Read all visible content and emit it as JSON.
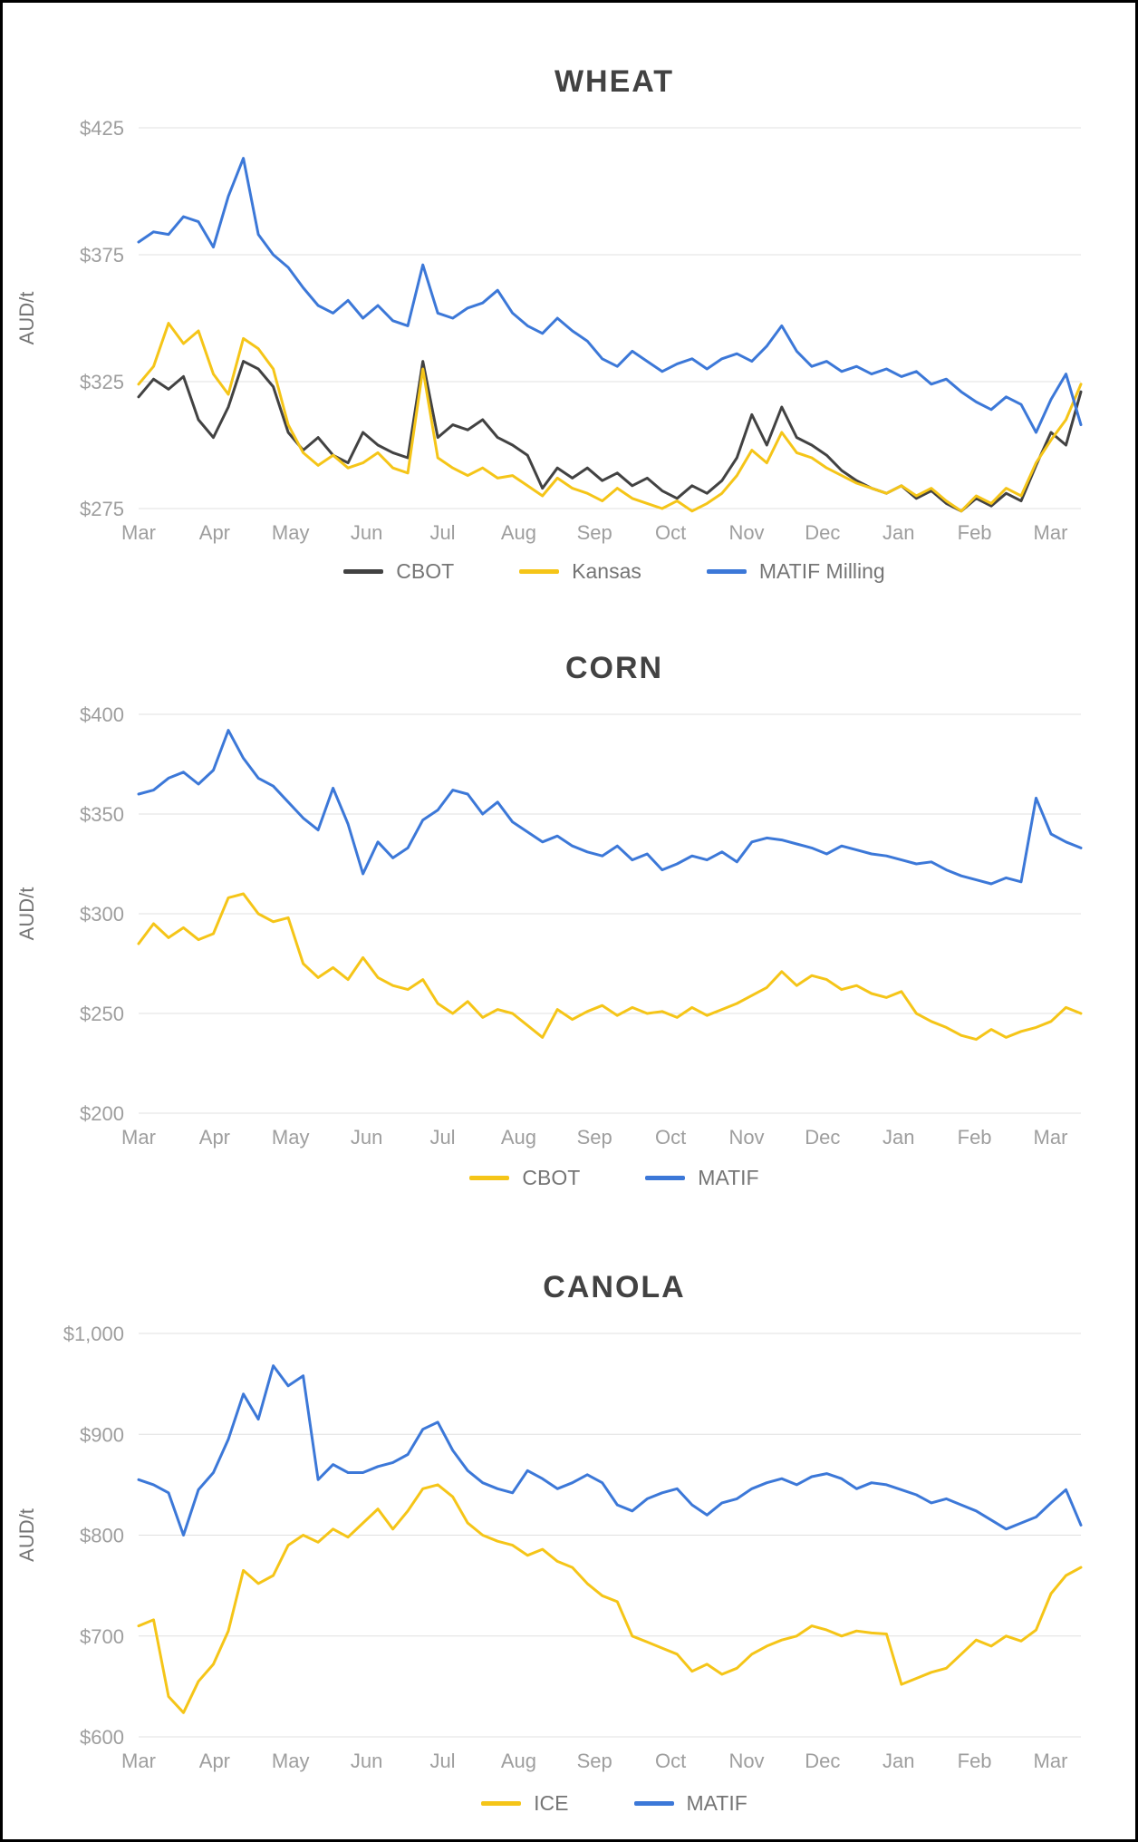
{
  "colors": {
    "background": "#ffffff",
    "border": "#000000",
    "grid": "#e0e0e0",
    "tick_label": "#9e9e9e",
    "title": "#424242",
    "legend_text": "#757575",
    "axis_label": "#757575",
    "yellow": "#F5C518",
    "blue": "#3C78D8",
    "dark": "#424242"
  },
  "chart_data": [
    {
      "type": "line",
      "title": "WHEAT",
      "ylabel": "AUD/t",
      "y_ticks": [
        425,
        375,
        325,
        275
      ],
      "y_tick_labels": [
        "$425",
        "$375",
        "$325",
        "$275"
      ],
      "ylim": [
        270,
        432
      ],
      "x_tick_labels": [
        "Mar",
        "Apr",
        "May",
        "Jun",
        "Jul",
        "Aug",
        "Sep",
        "Oct",
        "Nov",
        "Dec",
        "Jan",
        "Feb",
        "Mar"
      ],
      "x_months_span": 12.4,
      "grid": true,
      "legend_position": "bottom",
      "series": [
        {
          "name": "CBOT",
          "color": "#424242",
          "values": [
            319,
            326,
            322,
            327,
            310,
            303,
            315,
            333,
            330,
            323,
            305,
            298,
            303,
            296,
            293,
            305,
            300,
            297,
            295,
            333,
            303,
            308,
            306,
            310,
            303,
            300,
            296,
            283,
            291,
            287,
            291,
            286,
            289,
            284,
            287,
            282,
            279,
            284,
            281,
            286,
            295,
            312,
            300,
            315,
            303,
            300,
            296,
            290,
            286,
            283,
            281,
            284,
            279,
            282,
            277,
            274,
            279,
            276,
            281,
            278,
            292,
            305,
            300,
            321
          ]
        },
        {
          "name": "Kansas",
          "color": "#F5C518",
          "values": [
            324,
            331,
            348,
            340,
            345,
            328,
            320,
            342,
            338,
            330,
            308,
            297,
            292,
            296,
            291,
            293,
            297,
            291,
            289,
            330,
            295,
            291,
            288,
            291,
            287,
            288,
            284,
            280,
            287,
            283,
            281,
            278,
            283,
            279,
            277,
            275,
            278,
            274,
            277,
            281,
            288,
            298,
            293,
            305,
            297,
            295,
            291,
            288,
            285,
            283,
            281,
            284,
            280,
            283,
            278,
            274,
            280,
            277,
            283,
            280,
            293,
            302,
            310,
            324
          ]
        },
        {
          "name": "MATIF Milling",
          "color": "#3C78D8",
          "values": [
            380,
            384,
            383,
            390,
            388,
            378,
            398,
            413,
            383,
            375,
            370,
            362,
            355,
            352,
            357,
            350,
            355,
            349,
            347,
            371,
            352,
            350,
            354,
            356,
            361,
            352,
            347,
            344,
            350,
            345,
            341,
            334,
            331,
            337,
            333,
            329,
            332,
            334,
            330,
            334,
            336,
            333,
            339,
            347,
            337,
            331,
            333,
            329,
            331,
            328,
            330,
            327,
            329,
            324,
            326,
            321,
            317,
            314,
            319,
            316,
            305,
            318,
            328,
            308
          ]
        }
      ]
    },
    {
      "type": "line",
      "title": "CORN",
      "ylabel": "AUD/t",
      "y_ticks": [
        400,
        350,
        300,
        250,
        200
      ],
      "y_tick_labels": [
        "$400",
        "$350",
        "$300",
        "$250",
        "$200"
      ],
      "ylim": [
        195,
        405
      ],
      "x_tick_labels": [
        "Mar",
        "Apr",
        "May",
        "Jun",
        "Jul",
        "Aug",
        "Sep",
        "Oct",
        "Nov",
        "Dec",
        "Jan",
        "Feb",
        "Mar"
      ],
      "x_months_span": 12.4,
      "grid": true,
      "legend_position": "bottom",
      "series": [
        {
          "name": "CBOT",
          "color": "#F5C518",
          "values": [
            285,
            295,
            288,
            293,
            287,
            290,
            308,
            310,
            300,
            296,
            298,
            275,
            268,
            273,
            267,
            278,
            268,
            264,
            262,
            267,
            255,
            250,
            256,
            248,
            252,
            250,
            244,
            238,
            252,
            247,
            251,
            254,
            249,
            253,
            250,
            251,
            248,
            253,
            249,
            252,
            255,
            259,
            263,
            271,
            264,
            269,
            267,
            262,
            264,
            260,
            258,
            261,
            250,
            246,
            243,
            239,
            237,
            242,
            238,
            241,
            243,
            246,
            253,
            250
          ]
        },
        {
          "name": "MATIF",
          "color": "#3C78D8",
          "values": [
            360,
            362,
            368,
            371,
            365,
            372,
            392,
            378,
            368,
            364,
            356,
            348,
            342,
            363,
            345,
            320,
            336,
            328,
            333,
            347,
            352,
            362,
            360,
            350,
            356,
            346,
            341,
            336,
            339,
            334,
            331,
            329,
            334,
            327,
            330,
            322,
            325,
            329,
            327,
            331,
            326,
            336,
            338,
            337,
            335,
            333,
            330,
            334,
            332,
            330,
            329,
            327,
            325,
            326,
            322,
            319,
            317,
            315,
            318,
            316,
            358,
            340,
            336,
            333
          ]
        }
      ]
    },
    {
      "type": "line",
      "title": "CANOLA",
      "ylabel": "AUD/t",
      "y_ticks": [
        1000,
        900,
        800,
        700,
        600
      ],
      "y_tick_labels": [
        "$1,000",
        "$900",
        "$800",
        "$700",
        "$600"
      ],
      "ylim": [
        595,
        1005
      ],
      "x_tick_labels": [
        "Mar",
        "Apr",
        "May",
        "Jun",
        "Jul",
        "Aug",
        "Sep",
        "Oct",
        "Nov",
        "Dec",
        "Jan",
        "Feb",
        "Mar"
      ],
      "x_months_span": 12.4,
      "grid": true,
      "legend_position": "bottom",
      "series": [
        {
          "name": "ICE",
          "color": "#F5C518",
          "values": [
            710,
            716,
            640,
            624,
            655,
            672,
            705,
            765,
            752,
            760,
            790,
            800,
            793,
            806,
            798,
            812,
            826,
            806,
            824,
            846,
            850,
            838,
            812,
            800,
            794,
            790,
            780,
            786,
            774,
            768,
            752,
            740,
            734,
            700,
            694,
            688,
            682,
            665,
            672,
            662,
            668,
            682,
            690,
            696,
            700,
            710,
            706,
            700,
            705,
            703,
            702,
            652,
            658,
            664,
            668,
            682,
            696,
            690,
            700,
            695,
            706,
            742,
            760,
            768
          ]
        },
        {
          "name": "MATIF",
          "color": "#3C78D8",
          "values": [
            855,
            850,
            842,
            800,
            845,
            862,
            895,
            940,
            915,
            968,
            948,
            958,
            855,
            870,
            862,
            862,
            868,
            872,
            880,
            905,
            912,
            884,
            864,
            852,
            846,
            842,
            864,
            856,
            846,
            852,
            860,
            852,
            830,
            824,
            836,
            842,
            846,
            830,
            820,
            832,
            836,
            846,
            852,
            856,
            850,
            858,
            861,
            856,
            846,
            852,
            850,
            845,
            840,
            832,
            836,
            830,
            824,
            815,
            806,
            812,
            818,
            832,
            845,
            810
          ]
        }
      ]
    }
  ]
}
